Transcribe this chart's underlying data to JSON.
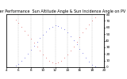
{
  "title": "Solar PV/Inverter Performance  Sun Altitude Angle & Sun Incidence Angle on PV Panels",
  "background_color": "#ffffff",
  "grid_color": "#888888",
  "xlim": [
    4,
    20
  ],
  "ylim": [
    0,
    80
  ],
  "yticks_left": [],
  "yticks_right": [
    0,
    10,
    20,
    30,
    40,
    50,
    60,
    70,
    80
  ],
  "xticks": [
    4,
    6,
    8,
    10,
    12,
    14,
    16,
    18,
    20
  ],
  "xtick_labels": [
    "4",
    "6",
    "8",
    "10",
    "12",
    "14",
    "16",
    "18",
    "20"
  ],
  "blue_x": [
    5.5,
    6.0,
    6.5,
    7.0,
    7.5,
    8.0,
    8.5,
    9.0,
    9.5,
    10.0,
    10.5,
    11.0,
    11.5,
    12.0,
    12.5,
    13.0,
    13.5,
    14.0,
    14.5,
    15.0,
    15.5,
    16.0,
    16.5,
    17.0,
    17.5,
    18.0,
    18.5
  ],
  "blue_y": [
    2,
    5,
    9,
    14,
    20,
    26,
    32,
    38,
    44,
    49,
    54,
    58,
    61,
    63,
    62,
    60,
    57,
    52,
    47,
    41,
    35,
    28,
    21,
    14,
    8,
    3,
    1
  ],
  "red_x": [
    5.5,
    6.0,
    6.5,
    7.0,
    7.5,
    8.0,
    8.5,
    9.0,
    9.5,
    10.0,
    10.5,
    11.0,
    11.5,
    12.0,
    12.5,
    13.0,
    13.5,
    14.0,
    14.5,
    15.0,
    15.5,
    16.0,
    16.5,
    17.0,
    17.5,
    18.0,
    18.5
  ],
  "red_y": [
    72,
    67,
    61,
    55,
    49,
    43,
    37,
    31,
    25,
    19,
    14,
    10,
    7,
    6,
    7,
    10,
    14,
    19,
    25,
    31,
    38,
    45,
    52,
    59,
    65,
    70,
    75
  ],
  "blue_color": "#0000cc",
  "red_color": "#cc0000",
  "title_fontsize": 3.5,
  "tick_fontsize": 3.0,
  "marker_size": 0.8,
  "linewidth": 0.0
}
